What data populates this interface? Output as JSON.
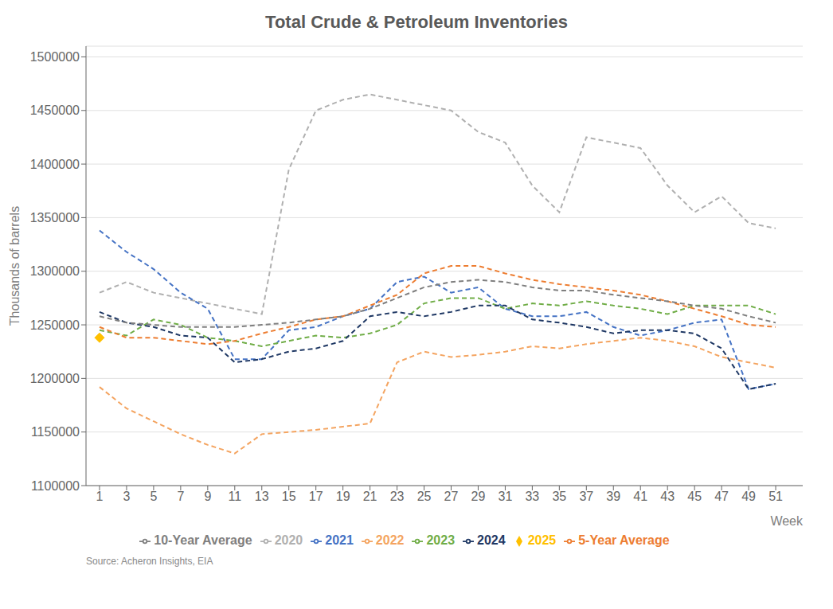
{
  "chart_data": {
    "type": "line",
    "title": "Total Crude & Petroleum Inventories",
    "x_label": "Week",
    "y_label": "Thousands of barrels",
    "annotations": [
      "Source: Acheron Insights, EIA"
    ],
    "x": [
      1,
      3,
      5,
      7,
      9,
      11,
      13,
      15,
      17,
      19,
      21,
      23,
      25,
      27,
      29,
      31,
      33,
      35,
      37,
      39,
      41,
      43,
      45,
      47,
      49,
      51
    ],
    "xlim": [
      0,
      53
    ],
    "xticks": [
      1,
      3,
      5,
      7,
      9,
      11,
      13,
      15,
      17,
      19,
      21,
      23,
      25,
      27,
      29,
      31,
      33,
      35,
      37,
      39,
      41,
      43,
      45,
      47,
      49,
      51
    ],
    "ylim": [
      1100000,
      1510000
    ],
    "yticks": [
      1100000,
      1150000,
      1200000,
      1250000,
      1300000,
      1350000,
      1400000,
      1450000,
      1500000
    ],
    "grid": true,
    "legend": "bottom",
    "series": [
      {
        "name": "2020",
        "color": "#b0b0b0",
        "line_style": "dashed",
        "values": [
          1280000,
          1290000,
          1280000,
          1275000,
          1270000,
          1265000,
          1260000,
          1395000,
          1450000,
          1460000,
          1465000,
          1460000,
          1455000,
          1450000,
          1430000,
          1420000,
          1380000,
          1355000,
          1425000,
          1420000,
          1415000,
          1380000,
          1355000,
          1370000,
          1345000,
          1340000
        ]
      },
      {
        "name": "2021",
        "color": "#4472c4",
        "line_style": "dashed",
        "values": [
          1338000,
          1318000,
          1302000,
          1280000,
          1265000,
          1218000,
          1218000,
          1245000,
          1248000,
          1258000,
          1265000,
          1290000,
          1295000,
          1280000,
          1285000,
          1265000,
          1258000,
          1258000,
          1262000,
          1248000,
          1240000,
          1245000,
          1252000,
          1255000,
          1190000,
          1195000
        ]
      },
      {
        "name": "2022",
        "color": "#f4a460",
        "line_style": "dashed",
        "values": [
          1192000,
          1172000,
          1160000,
          1148000,
          1138000,
          1130000,
          1148000,
          1150000,
          1152000,
          1155000,
          1158000,
          1215000,
          1225000,
          1220000,
          1222000,
          1225000,
          1230000,
          1228000,
          1232000,
          1235000,
          1238000,
          1235000,
          1230000,
          1220000,
          1215000,
          1210000
        ]
      },
      {
        "name": "2023",
        "color": "#70ad47",
        "line_style": "dashed",
        "values": [
          1245000,
          1240000,
          1255000,
          1250000,
          1238000,
          1235000,
          1230000,
          1235000,
          1240000,
          1238000,
          1242000,
          1250000,
          1270000,
          1275000,
          1275000,
          1265000,
          1270000,
          1268000,
          1272000,
          1268000,
          1265000,
          1260000,
          1268000,
          1268000,
          1268000,
          1260000
        ]
      },
      {
        "name": "2024",
        "color": "#1f3864",
        "line_style": "dashed",
        "values": [
          1262000,
          1252000,
          1248000,
          1240000,
          1238000,
          1215000,
          1218000,
          1225000,
          1228000,
          1235000,
          1258000,
          1262000,
          1258000,
          1262000,
          1268000,
          1268000,
          1255000,
          1252000,
          1248000,
          1242000,
          1245000,
          1245000,
          1242000,
          1228000,
          1190000,
          1195000
        ]
      },
      {
        "name": "2025",
        "color": "#ffc000",
        "line_style": "solid",
        "marker": "diamond",
        "values": [
          1238000,
          null,
          null,
          null,
          null,
          null,
          null,
          null,
          null,
          null,
          null,
          null,
          null,
          null,
          null,
          null,
          null,
          null,
          null,
          null,
          null,
          null,
          null,
          null,
          null,
          null
        ]
      },
      {
        "name": "5-Year Average",
        "color": "#ed7d31",
        "line_style": "dashed",
        "values": [
          1248000,
          1238000,
          1238000,
          1235000,
          1232000,
          1235000,
          1242000,
          1248000,
          1255000,
          1258000,
          1268000,
          1278000,
          1298000,
          1305000,
          1305000,
          1298000,
          1292000,
          1288000,
          1285000,
          1282000,
          1278000,
          1272000,
          1265000,
          1258000,
          1250000,
          1248000
        ]
      },
      {
        "name": "10-Year Average",
        "color": "#7f7f7f",
        "line_style": "dashed",
        "values": [
          1258000,
          1252000,
          1250000,
          1248000,
          1248000,
          1248000,
          1250000,
          1252000,
          1255000,
          1258000,
          1265000,
          1275000,
          1285000,
          1290000,
          1292000,
          1290000,
          1285000,
          1282000,
          1282000,
          1278000,
          1275000,
          1272000,
          1268000,
          1265000,
          1258000,
          1252000
        ]
      }
    ]
  }
}
